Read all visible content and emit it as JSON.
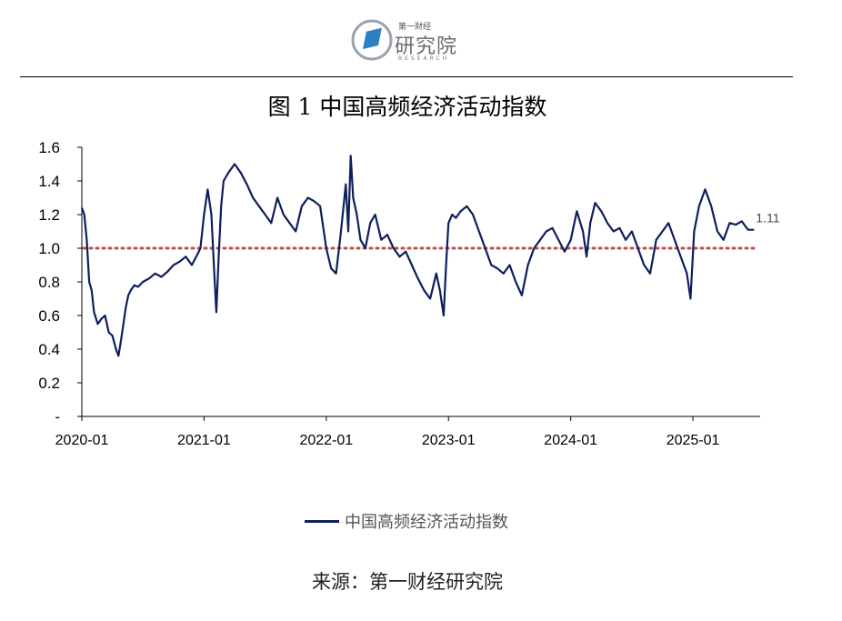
{
  "logo": {
    "icon": "book-icon",
    "line1": "第一财经",
    "line2": "研究院",
    "line3": "RESEARCH"
  },
  "title": "图 1  中国高频经济活动指数",
  "source": "来源：第一财经研究院",
  "colors": {
    "series": "#0d1f5c",
    "reference": "#c0504d"
  },
  "chart_data": {
    "type": "line",
    "title": "图 1  中国高频经济活动指数",
    "xlabel": "",
    "ylabel": "",
    "xlim": [
      2020.0,
      2025.55
    ],
    "ylim": [
      0,
      1.6
    ],
    "yticks": [
      {
        "value": 0,
        "label": "-"
      },
      {
        "value": 0.2,
        "label": "0.2"
      },
      {
        "value": 0.4,
        "label": "0.4"
      },
      {
        "value": 0.6,
        "label": "0.6"
      },
      {
        "value": 0.8,
        "label": "0.8"
      },
      {
        "value": 1.0,
        "label": "1.0"
      },
      {
        "value": 1.2,
        "label": "1.2"
      },
      {
        "value": 1.4,
        "label": "1.4"
      },
      {
        "value": 1.6,
        "label": "1.6"
      }
    ],
    "xticks": [
      {
        "value": 2020.0,
        "label": "2020-01"
      },
      {
        "value": 2021.0,
        "label": "2021-01"
      },
      {
        "value": 2022.0,
        "label": "2022-01"
      },
      {
        "value": 2023.0,
        "label": "2023-01"
      },
      {
        "value": 2024.0,
        "label": "2024-01"
      },
      {
        "value": 2025.0,
        "label": "2025-01"
      }
    ],
    "grid": false,
    "reference_line": {
      "y": 1.0,
      "style": "dotted"
    },
    "end_label": "1.11",
    "legend_position": "bottom",
    "series": [
      {
        "name": "中国高频经济活动指数",
        "x": [
          2020.0,
          2020.02,
          2020.04,
          2020.06,
          2020.08,
          2020.1,
          2020.13,
          2020.16,
          2020.19,
          2020.22,
          2020.25,
          2020.28,
          2020.3,
          2020.32,
          2020.34,
          2020.36,
          2020.38,
          2020.4,
          2020.43,
          2020.46,
          2020.5,
          2020.55,
          2020.6,
          2020.65,
          2020.7,
          2020.75,
          2020.8,
          2020.85,
          2020.9,
          2020.95,
          2020.97,
          2021.0,
          2021.03,
          2021.06,
          2021.08,
          2021.1,
          2021.12,
          2021.14,
          2021.16,
          2021.2,
          2021.25,
          2021.3,
          2021.35,
          2021.4,
          2021.45,
          2021.5,
          2021.55,
          2021.6,
          2021.65,
          2021.7,
          2021.75,
          2021.8,
          2021.85,
          2021.9,
          2021.95,
          2022.0,
          2022.04,
          2022.08,
          2022.12,
          2022.16,
          2022.18,
          2022.2,
          2022.22,
          2022.25,
          2022.28,
          2022.32,
          2022.36,
          2022.4,
          2022.45,
          2022.5,
          2022.55,
          2022.6,
          2022.65,
          2022.7,
          2022.75,
          2022.8,
          2022.85,
          2022.9,
          2022.93,
          2022.96,
          2022.98,
          2023.0,
          2023.03,
          2023.06,
          2023.1,
          2023.15,
          2023.2,
          2023.25,
          2023.3,
          2023.35,
          2023.4,
          2023.45,
          2023.5,
          2023.55,
          2023.6,
          2023.65,
          2023.7,
          2023.75,
          2023.8,
          2023.85,
          2023.9,
          2023.95,
          2024.0,
          2024.05,
          2024.1,
          2024.13,
          2024.16,
          2024.2,
          2024.25,
          2024.3,
          2024.35,
          2024.4,
          2024.45,
          2024.5,
          2024.55,
          2024.6,
          2024.65,
          2024.7,
          2024.75,
          2024.8,
          2024.85,
          2024.9,
          2024.95,
          2024.98,
          2025.01,
          2025.05,
          2025.1,
          2025.15,
          2025.2,
          2025.25,
          2025.3,
          2025.35,
          2025.4,
          2025.45,
          2025.5
        ],
        "y": [
          1.24,
          1.2,
          1.05,
          0.8,
          0.75,
          0.62,
          0.55,
          0.58,
          0.6,
          0.5,
          0.48,
          0.4,
          0.36,
          0.45,
          0.55,
          0.65,
          0.72,
          0.75,
          0.78,
          0.77,
          0.8,
          0.82,
          0.85,
          0.83,
          0.86,
          0.9,
          0.92,
          0.95,
          0.9,
          0.97,
          1.0,
          1.2,
          1.35,
          1.2,
          0.9,
          0.62,
          0.95,
          1.25,
          1.4,
          1.45,
          1.5,
          1.45,
          1.38,
          1.3,
          1.25,
          1.2,
          1.15,
          1.3,
          1.2,
          1.15,
          1.1,
          1.25,
          1.3,
          1.28,
          1.25,
          1.0,
          0.88,
          0.85,
          1.1,
          1.38,
          1.1,
          1.55,
          1.3,
          1.2,
          1.05,
          1.0,
          1.15,
          1.2,
          1.05,
          1.08,
          1.0,
          0.95,
          0.98,
          0.9,
          0.82,
          0.75,
          0.7,
          0.85,
          0.75,
          0.6,
          0.9,
          1.15,
          1.2,
          1.18,
          1.22,
          1.25,
          1.2,
          1.1,
          1.0,
          0.9,
          0.88,
          0.85,
          0.9,
          0.8,
          0.72,
          0.9,
          1.0,
          1.05,
          1.1,
          1.12,
          1.05,
          0.98,
          1.05,
          1.22,
          1.1,
          0.95,
          1.15,
          1.27,
          1.22,
          1.15,
          1.1,
          1.12,
          1.05,
          1.1,
          1.0,
          0.9,
          0.85,
          1.05,
          1.1,
          1.15,
          1.05,
          0.95,
          0.85,
          0.7,
          1.1,
          1.25,
          1.35,
          1.25,
          1.1,
          1.05,
          1.15,
          1.14,
          1.16,
          1.11,
          1.11
        ]
      }
    ]
  },
  "legend": {
    "label": "中国高频经济活动指数"
  }
}
